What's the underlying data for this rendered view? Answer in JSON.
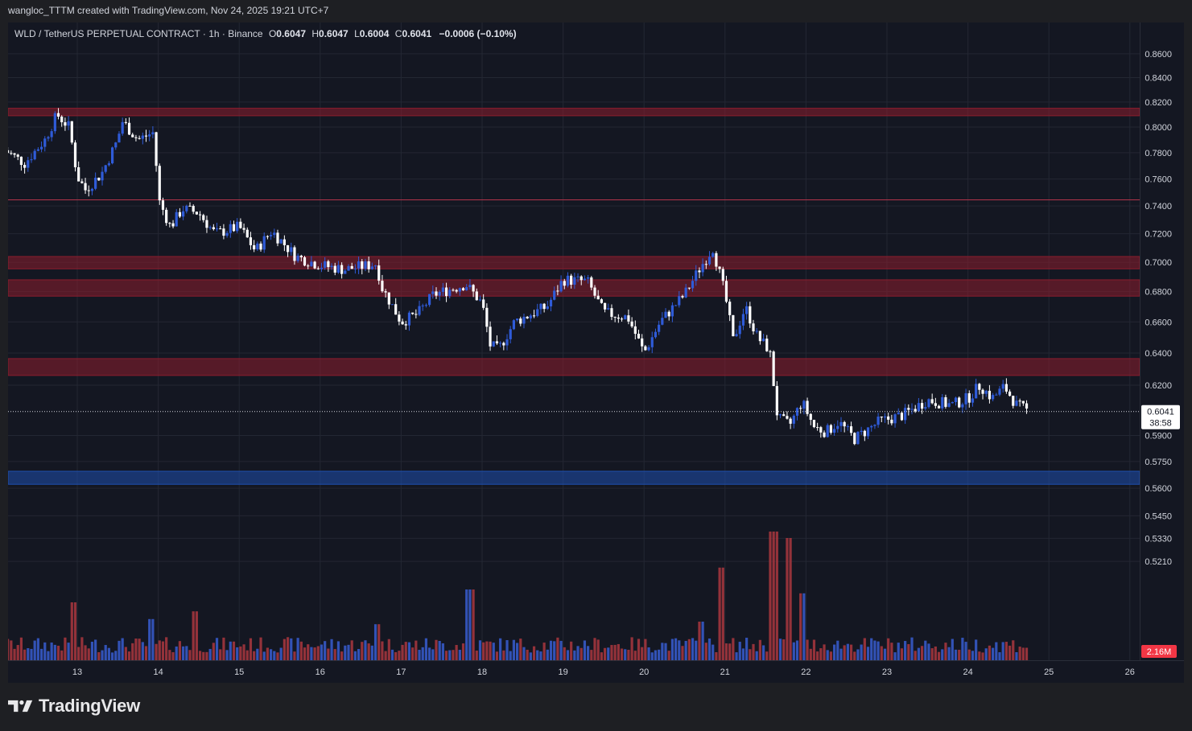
{
  "header": {
    "attribution": "wangloc_TTTM created with TradingView.com, Nov 24, 2025 19:21 UTC+7"
  },
  "footer": {
    "brand": "TradingView",
    "logo_icon": "tradingview-logo-icon"
  },
  "colors": {
    "background": "#141722",
    "grid": "#232733",
    "up": "#2f5bd8",
    "down": "#ffffff",
    "zone_resistance": "#8c1d2e",
    "zone_support": "#1e4fae",
    "vol_up": "#3559c7",
    "vol_down": "#a2353d"
  },
  "chart_data": {
    "type": "candlestick",
    "symbol": "WLD / TetherUS PERPETUAL CONTRACT",
    "interval": "1h",
    "exchange": "Binance",
    "ohlc_label": {
      "O_label": "O",
      "O": "0.6047",
      "H_label": "H",
      "H": "0.6047",
      "L_label": "L",
      "L": "0.6004",
      "C_label": "C",
      "C": "0.6041",
      "change": "−0.0006 (−0.10%)"
    },
    "price_scale": "log",
    "y_ticks": [
      "0.8600",
      "0.8400",
      "0.8200",
      "0.8000",
      "0.7800",
      "0.7600",
      "0.7400",
      "0.7200",
      "0.7000",
      "0.6800",
      "0.6600",
      "0.6400",
      "0.6200",
      "0.5900",
      "0.5750",
      "0.5600",
      "0.5450",
      "0.5330",
      "0.5210"
    ],
    "x_ticks": [
      "13",
      "14",
      "15",
      "16",
      "17",
      "18",
      "19",
      "20",
      "21",
      "22",
      "23",
      "24",
      "25",
      "26"
    ],
    "current_price": {
      "value": "0.6041",
      "countdown": "38:58"
    },
    "volume_label": "2.16M",
    "zones": [
      {
        "type": "resistance",
        "from": 0.809,
        "to": 0.815
      },
      {
        "type": "resistance",
        "from": 0.6955,
        "to": 0.704
      },
      {
        "type": "resistance",
        "from": 0.677,
        "to": 0.688
      },
      {
        "type": "resistance",
        "from": 0.626,
        "to": 0.6365
      },
      {
        "type": "support",
        "from": 0.5622,
        "to": 0.5695
      }
    ],
    "lines": [
      {
        "type": "horizontal",
        "price": 0.7445
      }
    ],
    "path_anchors": [
      [
        12.1,
        0.782
      ],
      [
        12.35,
        0.772
      ],
      [
        12.6,
        0.79
      ],
      [
        12.75,
        0.81
      ],
      [
        12.9,
        0.8
      ],
      [
        13.0,
        0.762
      ],
      [
        13.1,
        0.752
      ],
      [
        13.3,
        0.764
      ],
      [
        13.5,
        0.79
      ],
      [
        13.55,
        0.805
      ],
      [
        13.75,
        0.79
      ],
      [
        13.95,
        0.796
      ],
      [
        14.0,
        0.745
      ],
      [
        14.15,
        0.725
      ],
      [
        14.3,
        0.738
      ],
      [
        14.5,
        0.735
      ],
      [
        14.7,
        0.72
      ],
      [
        15.0,
        0.725
      ],
      [
        15.2,
        0.708
      ],
      [
        15.4,
        0.722
      ],
      [
        15.7,
        0.704
      ],
      [
        16.0,
        0.698
      ],
      [
        16.3,
        0.695
      ],
      [
        16.7,
        0.699
      ],
      [
        16.75,
        0.684
      ],
      [
        17.0,
        0.66
      ],
      [
        17.2,
        0.665
      ],
      [
        17.4,
        0.678
      ],
      [
        17.8,
        0.685
      ],
      [
        18.0,
        0.672
      ],
      [
        18.1,
        0.645
      ],
      [
        18.2,
        0.642
      ],
      [
        18.4,
        0.66
      ],
      [
        18.8,
        0.67
      ],
      [
        19.0,
        0.688
      ],
      [
        19.3,
        0.687
      ],
      [
        19.5,
        0.666
      ],
      [
        19.8,
        0.663
      ],
      [
        20.0,
        0.64
      ],
      [
        20.2,
        0.66
      ],
      [
        20.5,
        0.678
      ],
      [
        20.7,
        0.697
      ],
      [
        20.85,
        0.71
      ],
      [
        21.0,
        0.678
      ],
      [
        21.1,
        0.648
      ],
      [
        21.25,
        0.67
      ],
      [
        21.4,
        0.65
      ],
      [
        21.55,
        0.642
      ],
      [
        21.65,
        0.6
      ],
      [
        21.8,
        0.596
      ],
      [
        21.95,
        0.61
      ],
      [
        22.1,
        0.595
      ],
      [
        22.25,
        0.592
      ],
      [
        22.4,
        0.598
      ],
      [
        22.6,
        0.588
      ],
      [
        22.9,
        0.598
      ],
      [
        23.2,
        0.602
      ],
      [
        23.5,
        0.611
      ],
      [
        23.8,
        0.608
      ],
      [
        24.0,
        0.612
      ],
      [
        24.15,
        0.62
      ],
      [
        24.3,
        0.612
      ],
      [
        24.45,
        0.619
      ],
      [
        24.6,
        0.608
      ],
      [
        24.75,
        0.6041
      ]
    ],
    "volume_spikes": [
      [
        12.95,
        0.45
      ],
      [
        13.9,
        0.32
      ],
      [
        14.45,
        0.38
      ],
      [
        16.7,
        0.28
      ],
      [
        17.85,
        0.55
      ],
      [
        20.7,
        0.3
      ],
      [
        20.95,
        0.72
      ],
      [
        21.6,
        1.0
      ],
      [
        21.8,
        0.95
      ],
      [
        21.95,
        0.52
      ]
    ]
  }
}
